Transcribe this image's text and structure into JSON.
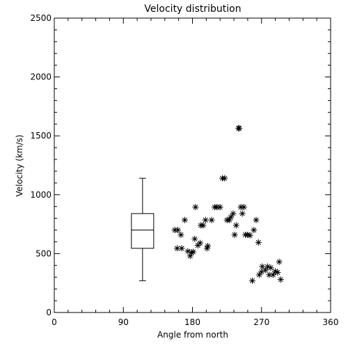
{
  "chart_data": {
    "type": "scatter",
    "title": "Velocity distribution",
    "xlabel": "Angle from north",
    "ylabel": "Velocity (km/s)",
    "xlim": [
      0,
      360
    ],
    "ylim": [
      0,
      2500
    ],
    "xticks": [
      0,
      90,
      180,
      270,
      360
    ],
    "yticks": [
      0,
      500,
      1000,
      1500,
      2000,
      2500
    ],
    "grid": false,
    "marker": "asterisk",
    "boxplot": {
      "x": 115,
      "min": 270,
      "q1": 545,
      "median": 700,
      "q3": 840,
      "max": 1140
    },
    "series": [
      {
        "points": [
          [
            157,
            700
          ],
          [
            160,
            545
          ],
          [
            161,
            700
          ],
          [
            165,
            660
          ],
          [
            166,
            545
          ],
          [
            170,
            785
          ],
          [
            174,
            520
          ],
          [
            177,
            480
          ],
          [
            179,
            510
          ],
          [
            181,
            515
          ],
          [
            183,
            625
          ],
          [
            184,
            895
          ],
          [
            187,
            570
          ],
          [
            190,
            590
          ],
          [
            191,
            740
          ],
          [
            194,
            740
          ],
          [
            197,
            785
          ],
          [
            199,
            545
          ],
          [
            200,
            565
          ],
          [
            205,
            785
          ],
          [
            209,
            895
          ],
          [
            212,
            895
          ],
          [
            216,
            895
          ],
          [
            219,
            1140
          ],
          [
            222,
            1140
          ],
          [
            225,
            785
          ],
          [
            228,
            785
          ],
          [
            230,
            810
          ],
          [
            233,
            840
          ],
          [
            235,
            660
          ],
          [
            237,
            740
          ],
          [
            240,
            1565
          ],
          [
            241,
            1565
          ],
          [
            243,
            895
          ],
          [
            245,
            840
          ],
          [
            247,
            895
          ],
          [
            249,
            660
          ],
          [
            252,
            660
          ],
          [
            255,
            655
          ],
          [
            258,
            270
          ],
          [
            260,
            700
          ],
          [
            263,
            785
          ],
          [
            266,
            595
          ],
          [
            267,
            320
          ],
          [
            270,
            345
          ],
          [
            271,
            390
          ],
          [
            275,
            360
          ],
          [
            278,
            390
          ],
          [
            280,
            320
          ],
          [
            282,
            380
          ],
          [
            285,
            320
          ],
          [
            288,
            350
          ],
          [
            291,
            340
          ],
          [
            293,
            430
          ],
          [
            295,
            280
          ]
        ]
      }
    ]
  }
}
